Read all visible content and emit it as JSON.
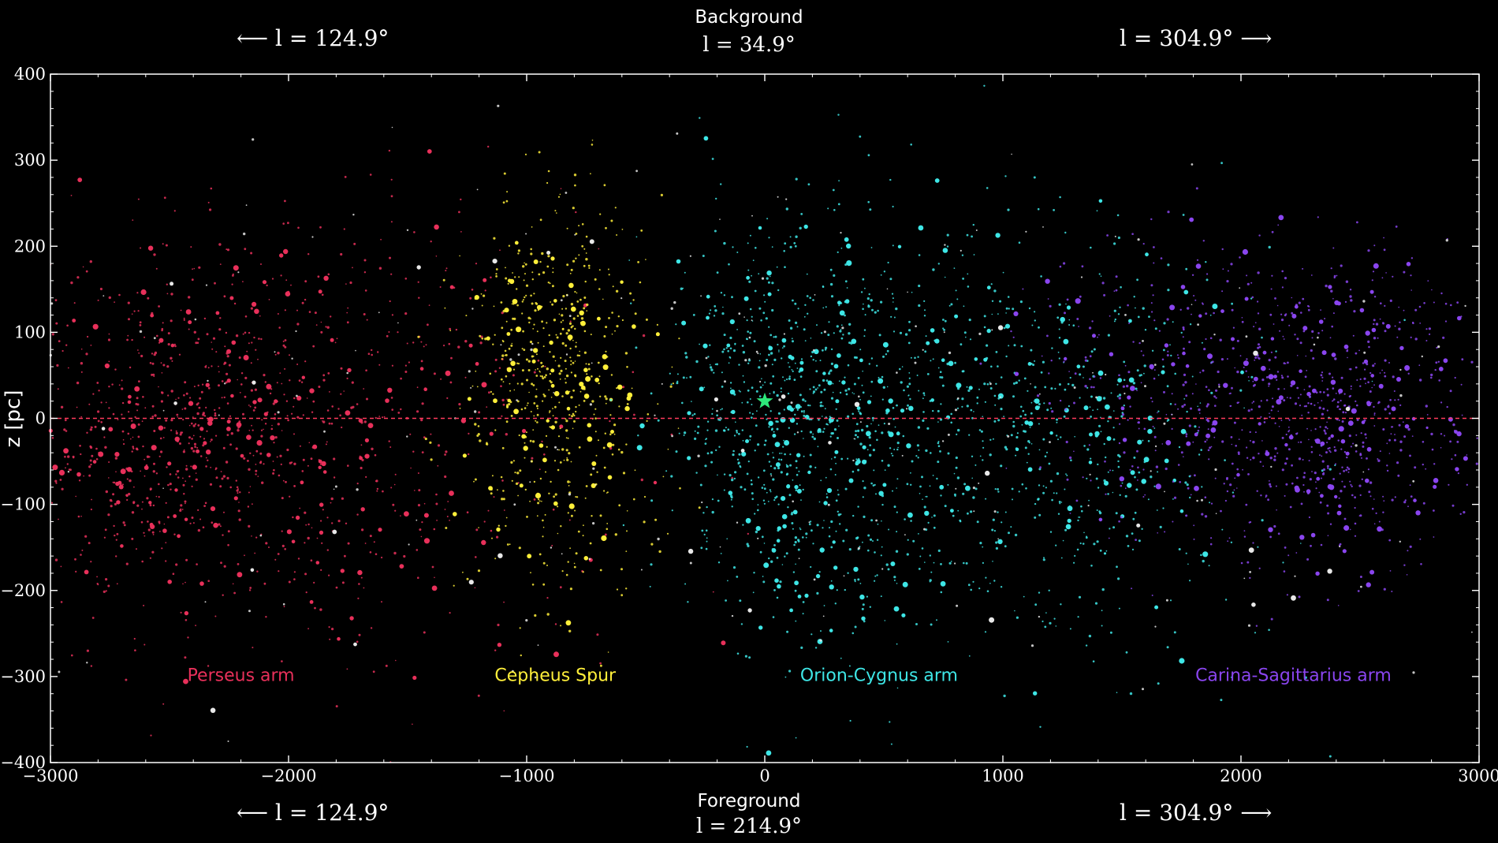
{
  "header": {
    "top_label": "Background",
    "top_l_value": "l = 34.9°",
    "top_left_dir": "⟵   l = 124.9°",
    "top_right_dir": "l = 304.9°   ⟶",
    "bottom_label": "Foreground",
    "bottom_l_value": "l = 214.9°",
    "bottom_left_dir": "⟵   l = 124.9°",
    "bottom_right_dir": "l = 304.9°   ⟶"
  },
  "chart_data": {
    "type": "scatter",
    "title": "",
    "xlabel": "",
    "ylabel": "z [pc]",
    "xlim": [
      -3000,
      3000
    ],
    "ylim": [
      -400,
      400
    ],
    "x_ticks": [
      -3000,
      -2000,
      -1000,
      0,
      1000,
      2000,
      3000
    ],
    "x_tick_labels": [
      "−3000",
      "−2000",
      "−1000",
      "0",
      "1000",
      "2000",
      "3000"
    ],
    "y_ticks": [
      -400,
      -300,
      -200,
      -100,
      0,
      100,
      200,
      300,
      400
    ],
    "y_tick_labels": [
      "−400",
      "−300",
      "−200",
      "−100",
      "0",
      "100",
      "200",
      "300",
      "400"
    ],
    "background": "#000000",
    "grid": false,
    "reference_line": {
      "y": 0,
      "color": "#ff3b5c",
      "style": "dashed"
    },
    "sun_marker": {
      "x": 0,
      "y": 20,
      "shape": "star",
      "color": "#2ee87a"
    },
    "series": [
      {
        "name": "Perseus arm",
        "color": "#e8305a",
        "annotation": {
          "text": "Perseus arm",
          "x": -2200,
          "y": -305
        },
        "clusters": [
          {
            "cx": -2450,
            "cy": -20,
            "sx": 380,
            "sy": 105,
            "n": 900
          },
          {
            "cx": -1600,
            "cy": 0,
            "sx": 300,
            "sy": 130,
            "n": 260
          },
          {
            "cx": -1100,
            "cy": -40,
            "sx": 400,
            "sy": 160,
            "n": 90
          }
        ]
      },
      {
        "name": "Cepheus Spur",
        "color": "#ffef3a",
        "annotation": {
          "text": "Cepheus Spur",
          "x": -880,
          "y": -305
        },
        "clusters": [
          {
            "cx": -880,
            "cy": 60,
            "sx": 190,
            "sy": 95,
            "n": 520
          },
          {
            "cx": -850,
            "cy": -80,
            "sx": 200,
            "sy": 90,
            "n": 120
          }
        ]
      },
      {
        "name": "Orion-Cygnus arm",
        "color": "#3ee6e6",
        "annotation": {
          "text": "Orion-Cygnus arm",
          "x": 480,
          "y": -305
        },
        "clusters": [
          {
            "cx": 0,
            "cy": 0,
            "sx": 220,
            "sy": 115,
            "n": 520
          },
          {
            "cx": 500,
            "cy": -10,
            "sx": 350,
            "sy": 120,
            "n": 620
          },
          {
            "cx": 1300,
            "cy": -30,
            "sx": 420,
            "sy": 120,
            "n": 520
          }
        ]
      },
      {
        "name": "Carina-Sagittarius arm",
        "color": "#8a45ef",
        "annotation": {
          "text": "Carina-Sagittarius arm",
          "x": 2220,
          "y": -305
        },
        "clusters": [
          {
            "cx": 2350,
            "cy": 10,
            "sx": 360,
            "sy": 90,
            "n": 820
          },
          {
            "cx": 1600,
            "cy": 40,
            "sx": 300,
            "sy": 80,
            "n": 220
          }
        ]
      },
      {
        "name": "",
        "color": "#e8e8e8",
        "clusters": [
          {
            "cx": 0,
            "cy": 0,
            "sx": 1700,
            "sy": 160,
            "n": 300
          }
        ]
      }
    ]
  }
}
